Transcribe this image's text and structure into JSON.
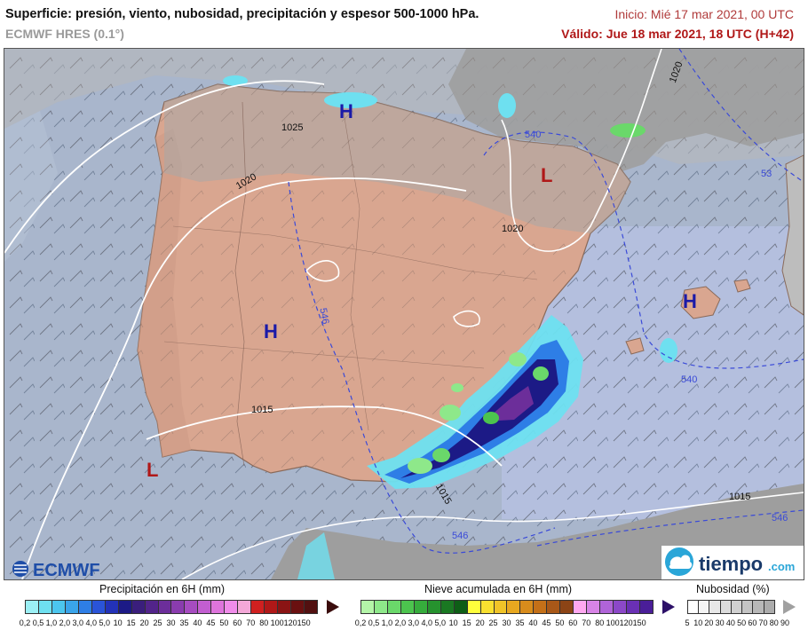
{
  "header": {
    "title": "Superficie: presión, viento, nubosidad, precipitación y espesor 500-1000 hPa.",
    "model": "ECMWF HRES (0.1°)",
    "start": "Inicio: Mié 17 mar 2021, 00 UTC",
    "valid": "Válido: Jue 18 mar 2021, 18 UTC (H+42)"
  },
  "map": {
    "pressure_centers": [
      {
        "label": "H",
        "color": "#1a1aa8"
      },
      {
        "label": "H",
        "color": "#1a1aa8"
      },
      {
        "label": "H",
        "color": "#1a1aa8"
      },
      {
        "label": "L",
        "color": "#b01818"
      },
      {
        "label": "L",
        "color": "#b01818"
      }
    ],
    "isobar_labels": [
      "1025",
      "1020",
      "1020",
      "1020",
      "1015",
      "1015",
      "1015"
    ],
    "thickness_labels": [
      "540",
      "540",
      "546",
      "546",
      "546",
      "53"
    ]
  },
  "logos": {
    "ecmwf": "ECMWF",
    "tiempo": "tiempo",
    "tiempo_suffix": ".com"
  },
  "legends": {
    "precip": {
      "title": "Precipitación en 6H (mm)",
      "ticks": [
        "0,2",
        "0,5",
        "1,0",
        "2,0",
        "3,0",
        "4,0",
        "5,0",
        "10",
        "15",
        "20",
        "25",
        "30",
        "35",
        "40",
        "45",
        "50",
        "60",
        "70",
        "80",
        "100",
        "120",
        "150"
      ],
      "colors": [
        "#9cf0f5",
        "#6ee0f0",
        "#4cc6ee",
        "#3aa4ea",
        "#2e7ee6",
        "#2a54d8",
        "#2332b8",
        "#1c1a86",
        "#3a1e7c",
        "#52248a",
        "#6c2e9a",
        "#8a3cae",
        "#a64cc0",
        "#c25ed0",
        "#de74dc",
        "#f08cea",
        "#f4a8d8",
        "#d02020",
        "#b01818",
        "#8a1414",
        "#6a1010",
        "#521010",
        "#3a0c0c"
      ]
    },
    "snow": {
      "title": "Nieve acumulada en 6H (mm)",
      "ticks": [
        "0,2",
        "0,5",
        "1,0",
        "2,0",
        "3,0",
        "4,0",
        "5,0",
        "10",
        "15",
        "20",
        "25",
        "30",
        "35",
        "40",
        "45",
        "50",
        "60",
        "70",
        "80",
        "100",
        "120",
        "150"
      ],
      "colors": [
        "#b4f5a8",
        "#8ee88a",
        "#6ad86a",
        "#4cc44e",
        "#36ac3c",
        "#26922e",
        "#1a7822",
        "#0e5e16",
        "#ffff3c",
        "#f8e030",
        "#f0c428",
        "#e8a820",
        "#d88c1c",
        "#c47018",
        "#a85818",
        "#8c4416",
        "#ffa8f0",
        "#d884e6",
        "#b064d8",
        "#8c48c8",
        "#6a30b4",
        "#4a1e98",
        "#2c1068"
      ]
    },
    "cloud": {
      "title": "Nubosidad (%)",
      "ticks": [
        "5",
        "10",
        "20",
        "30",
        "40",
        "50",
        "60",
        "70",
        "80",
        "90"
      ],
      "colors": [
        "#ffffff",
        "#f4f4f4",
        "#e8e8e8",
        "#dcdcdc",
        "#d0d0d0",
        "#c4c4c4",
        "#b8b8b8",
        "#acacac",
        "#a0a0a0"
      ]
    }
  }
}
